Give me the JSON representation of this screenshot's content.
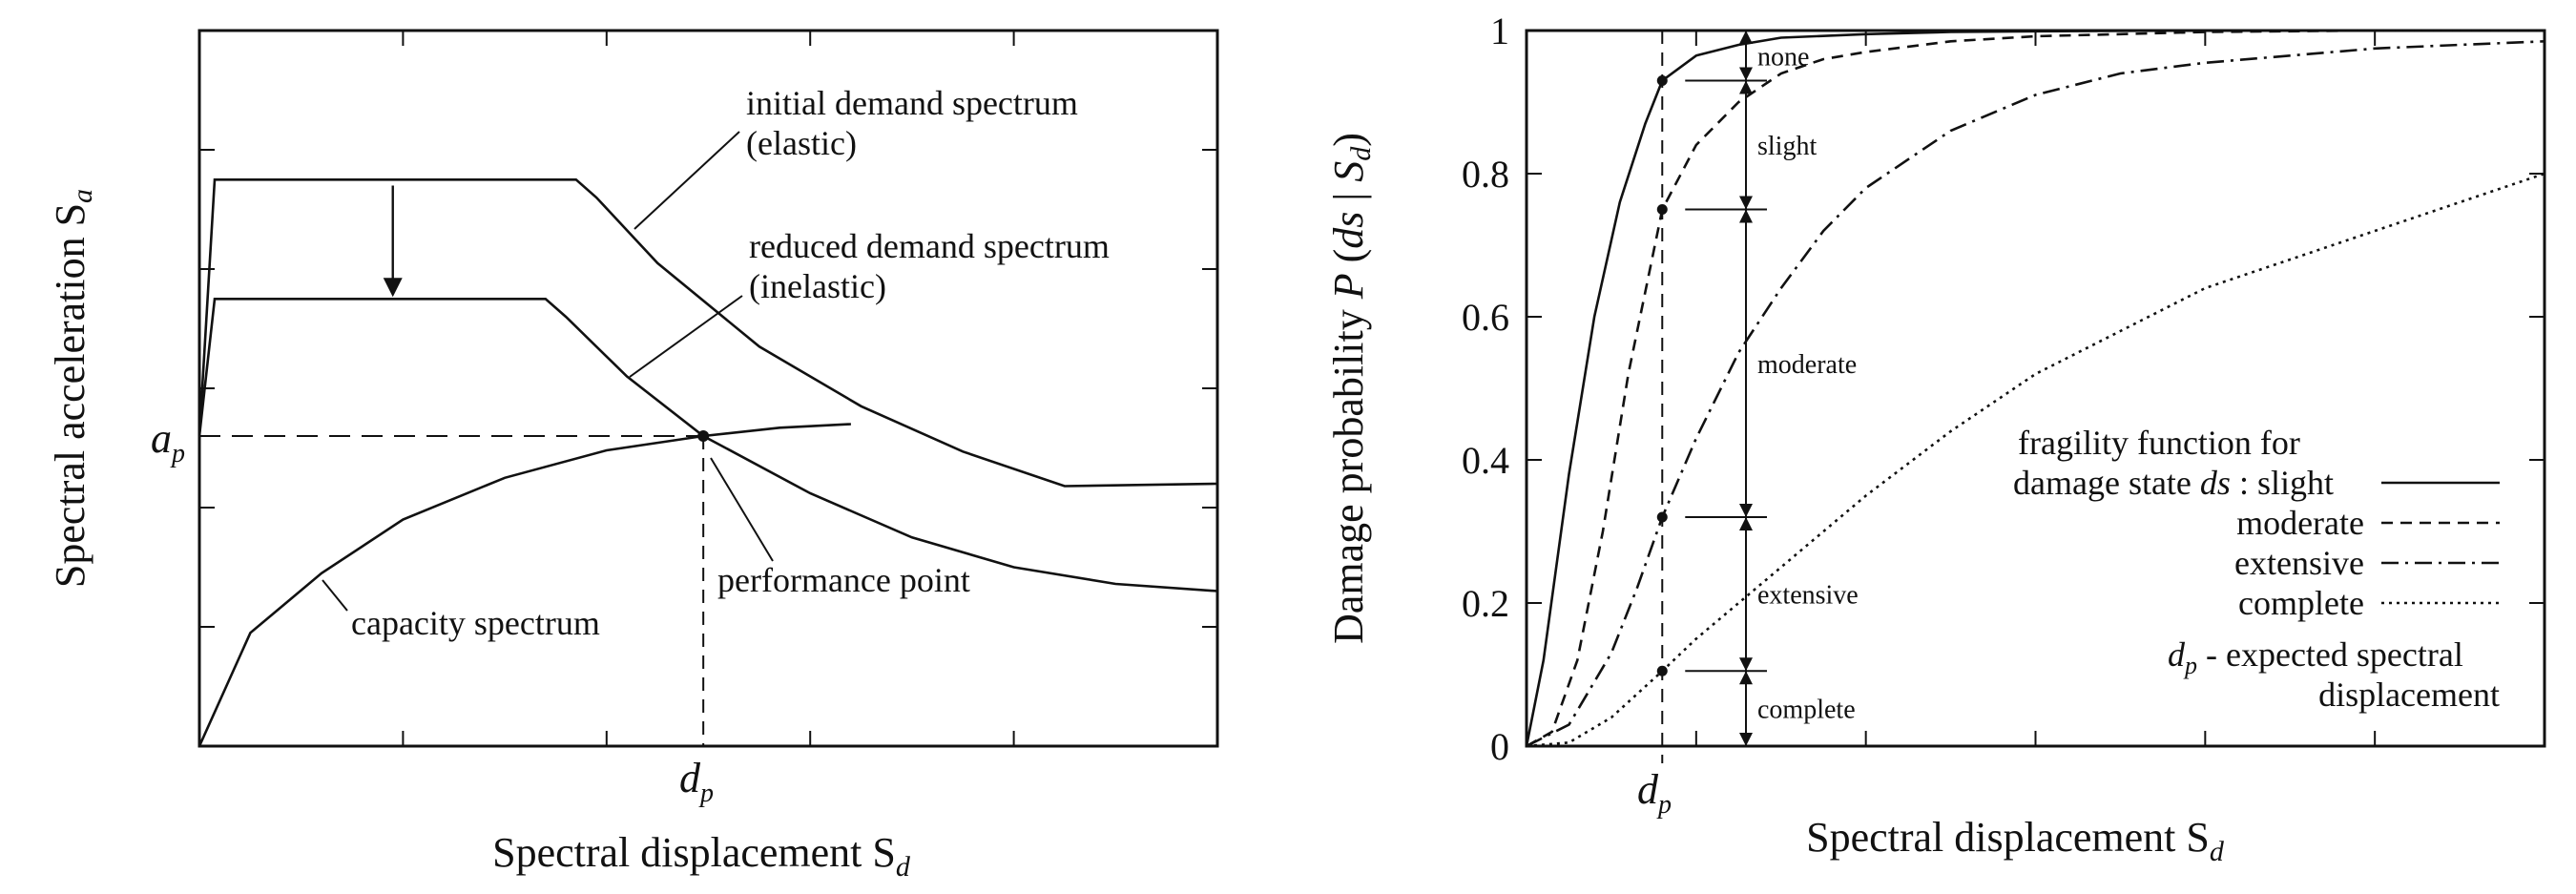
{
  "chart_data": [
    {
      "type": "line",
      "panel": "left",
      "xlabel": "Spectral displacement S",
      "xlabel_sub": "d",
      "ylabel": "Spectral acceleration S",
      "ylabel_sub": "a",
      "x_tick_label": "d",
      "x_tick_label_sub": "p",
      "y_tick_label": "a",
      "y_tick_label_sub": "p",
      "xlim": [
        0,
        10
      ],
      "ylim": [
        0,
        6
      ],
      "grid": false,
      "series": [
        {
          "name": "initial demand spectrum (elastic)",
          "line1": "initial demand spectrum",
          "line2": "(elastic)",
          "x": [
            0,
            0.15,
            3.7,
            3.9,
            4.5,
            5.5,
            6.5,
            7.5,
            8.5,
            10
          ],
          "y": [
            2.6,
            4.75,
            4.75,
            4.6,
            4.05,
            3.35,
            2.85,
            2.47,
            2.18,
            2.2
          ]
        },
        {
          "name": "reduced demand spectrum (inelastic)",
          "line1": "reduced demand spectrum",
          "line2": "(inelastic)",
          "x": [
            0,
            0.15,
            3.4,
            3.6,
            4.2,
            4.95,
            6,
            7,
            8,
            9,
            10
          ],
          "y": [
            2.6,
            3.75,
            3.75,
            3.6,
            3.1,
            2.6,
            2.12,
            1.75,
            1.5,
            1.36,
            1.3
          ]
        },
        {
          "name": "capacity spectrum",
          "x": [
            0,
            0.5,
            1.2,
            2,
            3,
            4,
            4.95,
            5.7,
            6.4
          ],
          "y": [
            0,
            0.95,
            1.45,
            1.9,
            2.25,
            2.48,
            2.6,
            2.67,
            2.7
          ]
        }
      ],
      "performance_point": {
        "label": "performance point",
        "x": 4.95,
        "y": 2.6
      },
      "demand_arrow": {
        "x": 1.9,
        "from": 4.7,
        "to": 3.75
      }
    },
    {
      "type": "line",
      "panel": "right",
      "xlabel": "Spectral displacement S",
      "xlabel_sub": "d",
      "ylabel_parts": {
        "pre": "Damage probability ",
        "P": "P",
        "open": " (",
        "ds": "ds",
        "mid": " | ",
        "S": "S",
        "sub": "d",
        "close": ")"
      },
      "x_tick_label": "d",
      "x_tick_label_sub": "p",
      "y_ticks": [
        0,
        0.2,
        0.4,
        0.6,
        0.8,
        1
      ],
      "y_tick_labels": [
        "0",
        "0.2",
        "0.4",
        "0.6",
        "0.8",
        "1"
      ],
      "xlim": [
        0,
        12
      ],
      "ylim": [
        0,
        1
      ],
      "grid": false,
      "dp": 1.6,
      "series": [
        {
          "name": "slight",
          "dash": "solid",
          "x": [
            0,
            0.2,
            0.5,
            0.8,
            1.1,
            1.4,
            1.6,
            2,
            2.5,
            3,
            4,
            5,
            6,
            8,
            12
          ],
          "y": [
            0,
            0.12,
            0.38,
            0.6,
            0.76,
            0.87,
            0.93,
            0.965,
            0.98,
            0.99,
            0.995,
            0.998,
            0.999,
            1,
            1
          ]
        },
        {
          "name": "moderate",
          "dash": "dash",
          "x": [
            0,
            0.3,
            0.6,
            0.9,
            1.2,
            1.6,
            2,
            2.5,
            3,
            3.5,
            4,
            5,
            6,
            7,
            8,
            10,
            12
          ],
          "y": [
            0,
            0.02,
            0.12,
            0.3,
            0.52,
            0.75,
            0.84,
            0.9,
            0.94,
            0.96,
            0.97,
            0.985,
            0.992,
            0.995,
            0.998,
            1,
            1
          ]
        },
        {
          "name": "extensive",
          "dash": "dashdot",
          "x": [
            0,
            0.5,
            1,
            1.3,
            1.6,
            2,
            2.5,
            3,
            3.5,
            4,
            5,
            6,
            7,
            8,
            9,
            10,
            11,
            12
          ],
          "y": [
            0,
            0.03,
            0.13,
            0.22,
            0.32,
            0.43,
            0.55,
            0.64,
            0.72,
            0.78,
            0.86,
            0.91,
            0.94,
            0.955,
            0.965,
            0.975,
            0.98,
            0.985
          ]
        },
        {
          "name": "complete",
          "dash": "dot",
          "x": [
            0,
            0.5,
            1,
            1.6,
            2,
            2.5,
            3,
            3.5,
            4,
            5,
            6,
            7,
            8,
            9,
            10,
            11,
            12
          ],
          "y": [
            0,
            0.005,
            0.04,
            0.105,
            0.15,
            0.2,
            0.25,
            0.3,
            0.35,
            0.44,
            0.52,
            0.58,
            0.64,
            0.68,
            0.72,
            0.76,
            0.8
          ]
        }
      ],
      "damage_zones": [
        {
          "label": "none",
          "from": 0.93,
          "to": 1.0
        },
        {
          "label": "slight",
          "from": 0.75,
          "to": 0.93
        },
        {
          "label": "moderate",
          "from": 0.32,
          "to": 0.75
        },
        {
          "label": "extensive",
          "from": 0.105,
          "to": 0.32
        },
        {
          "label": "complete",
          "from": 0.0,
          "to": 0.105
        }
      ],
      "legend": {
        "placement": "bottom-right",
        "line1": "fragility function for",
        "line2_pre": "damage state ",
        "line2_ds": "ds",
        "line2_post": " : slight",
        "entries": [
          "moderate",
          "extensive",
          "complete"
        ],
        "note_d": "d",
        "note_sub": "p",
        "note_text": " - expected spectral",
        "note_line2": "displacement"
      }
    }
  ]
}
